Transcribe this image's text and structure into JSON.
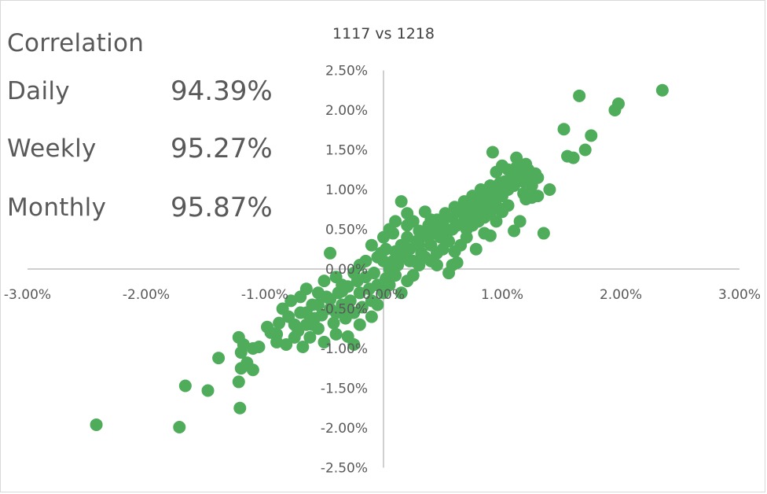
{
  "correlation": {
    "heading": "Correlation",
    "rows": [
      {
        "label": "Daily",
        "value": "94.39%"
      },
      {
        "label": "Weekly",
        "value": "95.27%"
      },
      {
        "label": "Monthly",
        "value": "95.87%"
      }
    ]
  },
  "chart_data": {
    "type": "scatter",
    "title": "1117 vs 1218",
    "xlabel": "",
    "ylabel": "",
    "xlim": [
      -3.0,
      3.0
    ],
    "ylim": [
      -2.5,
      2.5
    ],
    "x_ticks": [
      -3.0,
      -2.0,
      -1.0,
      0.0,
      1.0,
      2.0,
      3.0
    ],
    "x_tick_labels": [
      "-3.00%",
      "-2.00%",
      "-1.00%",
      "0.00%",
      "1.00%",
      "2.00%",
      "3.00%"
    ],
    "y_ticks": [
      2.5,
      2.0,
      1.5,
      1.0,
      0.5,
      0.0,
      -0.5,
      -1.0,
      -1.5,
      -2.0,
      -2.5
    ],
    "y_tick_labels": [
      "2.50%",
      "2.00%",
      "1.50%",
      "1.00%",
      "0.50%",
      "0.00%",
      "-0.50%",
      "-1.00%",
      "-1.50%",
      "-2.00%",
      "-2.50%"
    ],
    "grid": false,
    "marker_color": "#4eac5b",
    "axis_color": "#bfbfbf",
    "series": [
      {
        "points": [
          [
            -2.42,
            -1.96
          ],
          [
            -1.72,
            -1.99
          ],
          [
            -1.67,
            -1.47
          ],
          [
            -1.48,
            -1.53
          ],
          [
            -1.39,
            -1.12
          ],
          [
            -1.21,
            -1.75
          ],
          [
            -1.22,
            -1.42
          ],
          [
            -1.2,
            -1.25
          ],
          [
            -1.15,
            -1.18
          ],
          [
            -1.1,
            -1.27
          ],
          [
            -1.22,
            -0.86
          ],
          [
            -1.18,
            -0.95
          ],
          [
            -1.1,
            -1.0
          ],
          [
            -1.2,
            -1.05
          ],
          [
            -1.05,
            -0.98
          ],
          [
            -0.98,
            -0.73
          ],
          [
            -0.9,
            -0.82
          ],
          [
            -0.88,
            -0.68
          ],
          [
            -0.82,
            -0.95
          ],
          [
            -0.8,
            -0.6
          ],
          [
            -0.78,
            -0.4
          ],
          [
            -0.75,
            -0.86
          ],
          [
            -0.72,
            -0.78
          ],
          [
            -0.7,
            -0.55
          ],
          [
            -0.68,
            -0.98
          ],
          [
            -0.65,
            -0.7
          ],
          [
            -0.62,
            -0.86
          ],
          [
            -0.6,
            -0.45
          ],
          [
            -0.58,
            -0.62
          ],
          [
            -0.55,
            -0.75
          ],
          [
            -0.52,
            -0.58
          ],
          [
            -0.5,
            -0.92
          ],
          [
            -0.48,
            -0.35
          ],
          [
            -0.45,
            -0.5
          ],
          [
            -0.42,
            -0.68
          ],
          [
            -0.4,
            -0.82
          ],
          [
            -0.38,
            -0.3
          ],
          [
            -0.35,
            -0.45
          ],
          [
            -0.32,
            -0.62
          ],
          [
            -0.3,
            -0.22
          ],
          [
            -0.28,
            -0.4
          ],
          [
            -0.25,
            -0.55
          ],
          [
            -0.22,
            -0.15
          ],
          [
            -0.2,
            -0.3
          ],
          [
            -0.18,
            -0.48
          ],
          [
            -0.15,
            -0.1
          ],
          [
            -0.12,
            -0.25
          ],
          [
            -0.1,
            -0.4
          ],
          [
            -0.08,
            -0.05
          ],
          [
            -0.05,
            -0.2
          ],
          [
            -0.3,
            -0.85
          ],
          [
            -0.25,
            -0.95
          ],
          [
            -0.35,
            -0.2
          ],
          [
            -0.5,
            -0.15
          ],
          [
            -0.55,
            -0.3
          ],
          [
            -0.65,
            -0.25
          ],
          [
            -0.45,
            0.2
          ],
          [
            -0.2,
            0.05
          ],
          [
            -0.15,
            0.1
          ],
          [
            -0.1,
            0.3
          ],
          [
            -0.05,
            0.15
          ],
          [
            -0.25,
            -0.05
          ],
          [
            -0.4,
            -0.1
          ],
          [
            -0.7,
            -0.35
          ],
          [
            -0.85,
            -0.5
          ],
          [
            -0.2,
            -0.7
          ],
          [
            -0.1,
            -0.6
          ],
          [
            -0.05,
            -0.45
          ],
          [
            0.0,
            -0.3
          ],
          [
            0.02,
            -0.12
          ],
          [
            0.05,
            0.0
          ],
          [
            0.08,
            0.1
          ],
          [
            0.1,
            0.22
          ],
          [
            0.12,
            0.05
          ],
          [
            0.15,
            0.3
          ],
          [
            0.18,
            0.18
          ],
          [
            0.2,
            0.4
          ],
          [
            0.22,
            0.25
          ],
          [
            0.25,
            0.1
          ],
          [
            0.28,
            0.35
          ],
          [
            0.3,
            0.48
          ],
          [
            0.32,
            0.2
          ],
          [
            0.35,
            0.42
          ],
          [
            0.38,
            0.55
          ],
          [
            0.4,
            0.3
          ],
          [
            0.42,
            0.5
          ],
          [
            0.45,
            0.62
          ],
          [
            0.48,
            0.4
          ],
          [
            0.5,
            0.58
          ],
          [
            0.52,
            0.7
          ],
          [
            0.55,
            0.48
          ],
          [
            0.58,
            0.65
          ],
          [
            0.6,
            0.78
          ],
          [
            0.62,
            0.55
          ],
          [
            0.65,
            0.72
          ],
          [
            0.68,
            0.85
          ],
          [
            0.7,
            0.62
          ],
          [
            0.72,
            0.8
          ],
          [
            0.75,
            0.92
          ],
          [
            0.78,
            0.7
          ],
          [
            0.8,
            0.88
          ],
          [
            0.82,
            1.0
          ],
          [
            0.85,
            0.78
          ],
          [
            0.88,
            0.95
          ],
          [
            0.9,
            1.05
          ],
          [
            0.92,
            0.85
          ],
          [
            0.95,
            1.0
          ],
          [
            0.98,
            1.08
          ],
          [
            1.0,
            0.92
          ],
          [
            1.02,
            1.1
          ],
          [
            1.05,
            1.0
          ],
          [
            1.08,
            1.2
          ],
          [
            1.1,
            1.05
          ],
          [
            1.12,
            1.28
          ],
          [
            1.15,
            1.15
          ],
          [
            1.18,
            1.1
          ],
          [
            1.2,
            1.32
          ],
          [
            1.22,
            1.18
          ],
          [
            1.25,
            1.05
          ],
          [
            1.28,
            1.2
          ],
          [
            1.3,
            1.15
          ],
          [
            0.15,
            0.85
          ],
          [
            0.2,
            0.7
          ],
          [
            0.35,
            0.72
          ],
          [
            0.4,
            0.62
          ],
          [
            0.55,
            0.35
          ],
          [
            0.6,
            0.22
          ],
          [
            0.58,
            0.05
          ],
          [
            0.7,
            0.4
          ],
          [
            0.75,
            0.55
          ],
          [
            0.78,
            0.25
          ],
          [
            0.85,
            0.45
          ],
          [
            0.9,
            0.42
          ],
          [
            0.95,
            0.6
          ],
          [
            1.0,
            0.72
          ],
          [
            1.05,
            0.8
          ],
          [
            1.1,
            0.48
          ],
          [
            1.15,
            0.6
          ],
          [
            1.2,
            0.88
          ],
          [
            1.25,
            0.9
          ],
          [
            0.92,
            1.47
          ],
          [
            1.12,
            1.4
          ],
          [
            1.0,
            1.3
          ],
          [
            1.05,
            1.25
          ],
          [
            0.95,
            1.22
          ],
          [
            1.4,
            1.0
          ],
          [
            1.35,
            0.45
          ],
          [
            1.3,
            0.92
          ],
          [
            1.18,
            0.95
          ],
          [
            0.62,
            0.08
          ],
          [
            0.55,
            -0.05
          ],
          [
            0.45,
            0.05
          ],
          [
            0.3,
            0.05
          ],
          [
            0.25,
            -0.08
          ],
          [
            0.2,
            -0.15
          ],
          [
            0.15,
            -0.3
          ],
          [
            0.1,
            -0.08
          ],
          [
            0.05,
            -0.2
          ],
          [
            0.2,
            0.55
          ],
          [
            0.25,
            0.6
          ],
          [
            0.35,
            0.15
          ],
          [
            0.4,
            0.1
          ],
          [
            0.45,
            0.2
          ],
          [
            0.5,
            0.25
          ],
          [
            0.65,
            0.3
          ],
          [
            0.7,
            0.5
          ],
          [
            0.8,
            0.6
          ],
          [
            0.85,
            0.65
          ],
          [
            0.9,
            0.7
          ],
          [
            0.95,
            0.8
          ],
          [
            1.55,
            1.42
          ],
          [
            1.52,
            1.76
          ],
          [
            1.65,
            2.18
          ],
          [
            1.75,
            1.68
          ],
          [
            1.95,
            2.0
          ],
          [
            1.98,
            2.08
          ],
          [
            2.35,
            2.25
          ],
          [
            1.6,
            1.4
          ],
          [
            1.7,
            1.5
          ],
          [
            0.0,
            0.4
          ],
          [
            0.05,
            0.5
          ],
          [
            0.1,
            0.6
          ],
          [
            0.08,
            0.45
          ],
          [
            -0.02,
            0.2
          ],
          [
            0.0,
            0.1
          ],
          [
            0.02,
            0.25
          ],
          [
            0.15,
            0.15
          ],
          [
            0.22,
            0.1
          ],
          [
            0.3,
            0.3
          ],
          [
            0.38,
            0.4
          ],
          [
            0.48,
            0.55
          ],
          [
            0.58,
            0.5
          ],
          [
            0.68,
            0.6
          ],
          [
            0.75,
            0.7
          ],
          [
            0.82,
            0.78
          ],
          [
            0.88,
            0.88
          ],
          [
            0.98,
            0.95
          ],
          [
            1.08,
            1.08
          ],
          [
            1.15,
            1.2
          ],
          [
            1.22,
            1.25
          ],
          [
            -0.3,
            -0.5
          ],
          [
            -0.4,
            -0.55
          ],
          [
            -0.6,
            -0.7
          ],
          [
            -0.75,
            -0.7
          ],
          [
            -0.9,
            -0.92
          ],
          [
            -0.95,
            -0.8
          ],
          [
            -0.65,
            -0.55
          ],
          [
            -0.55,
            -0.45
          ],
          [
            -0.45,
            -0.38
          ],
          [
            -0.35,
            -0.28
          ]
        ]
      }
    ]
  }
}
